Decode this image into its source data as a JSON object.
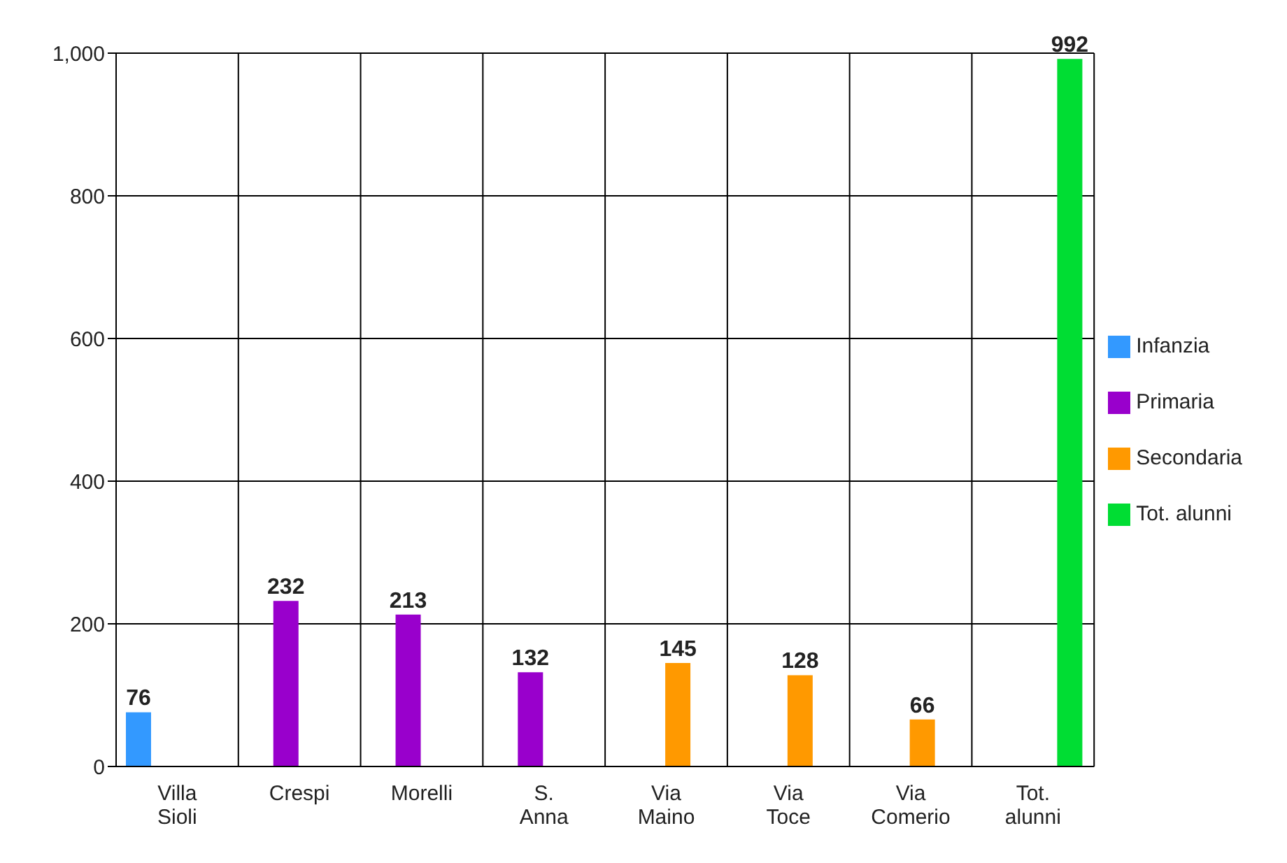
{
  "chart_data": {
    "type": "bar",
    "categories": [
      "Villa Sioli",
      "Crespi",
      "Morelli",
      "S. Anna",
      "Via Maino",
      "Via Toce",
      "Via Comerio",
      "Tot. alunni"
    ],
    "series": [
      {
        "name": "Infanzia",
        "color": "#3399ff",
        "values": [
          76,
          null,
          null,
          null,
          null,
          null,
          null,
          null
        ]
      },
      {
        "name": "Primaria",
        "color": "#9900cc",
        "values": [
          null,
          232,
          213,
          132,
          null,
          null,
          null,
          null
        ]
      },
      {
        "name": "Secondaria",
        "color": "#ff9900",
        "values": [
          null,
          null,
          null,
          null,
          145,
          128,
          66,
          null
        ]
      },
      {
        "name": "Tot. alunni",
        "color": "#00dd33",
        "values": [
          null,
          null,
          null,
          null,
          null,
          null,
          null,
          992
        ]
      }
    ],
    "ylim": [
      0,
      1000
    ],
    "yticks": [
      0,
      200,
      400,
      600,
      800,
      {
        "value": 1000,
        "label": "1,000"
      }
    ],
    "grid": true,
    "legend": "right",
    "data_labels": true
  }
}
